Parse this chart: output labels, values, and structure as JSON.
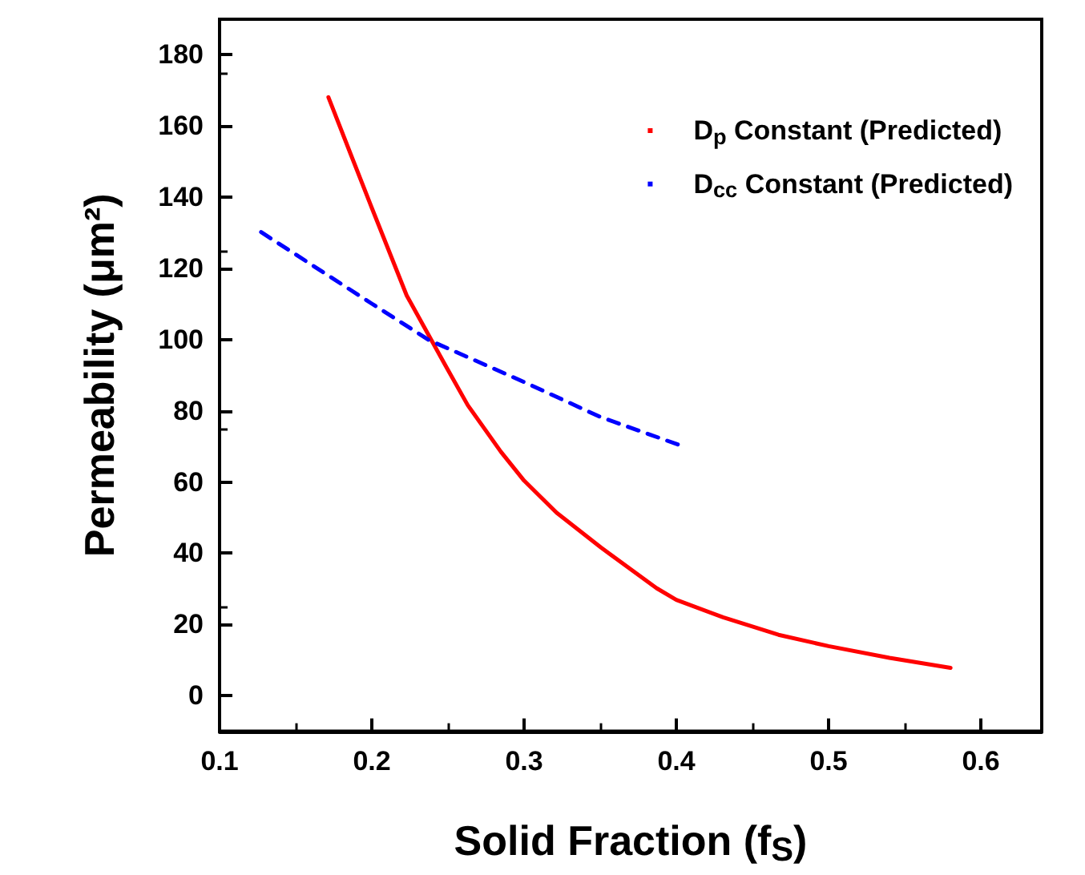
{
  "chart_data": {
    "type": "line",
    "xlabel": "Solid Fraction (f$_{S}$)",
    "ylabel": "Permeability (μm²)",
    "xlim": [
      0.1,
      0.64
    ],
    "xticks": [
      0.1,
      0.2,
      0.3,
      0.4,
      0.5,
      0.6
    ],
    "ylim": [
      -10,
      190
    ],
    "yticks": [
      0,
      20,
      40,
      60,
      80,
      100,
      120,
      140,
      160,
      180
    ],
    "grid": false,
    "legend": "top right",
    "marker": "none",
    "series": [
      {
        "name": "D$_{p}$ Constant (Predicted)",
        "color": "#ff0000",
        "line_style": "solid",
        "x": [
          0.1715,
          0.1864,
          0.2,
          0.2229,
          0.2374,
          0.2484,
          0.263,
          0.2848,
          0.3,
          0.3213,
          0.3505,
          0.387,
          0.4,
          0.4307,
          0.4671,
          0.5,
          0.54,
          0.5801
        ],
        "values": [
          168.1,
          151.8,
          137,
          112.4,
          101.2,
          92.7,
          81.6,
          68.5,
          60.4,
          51.4,
          41.6,
          30.2,
          26.9,
          22,
          17.1,
          13.9,
          10.6,
          7.8
        ]
      },
      {
        "name": "D$_{cc}$ Constant (Predicted)",
        "color": "#0000ff",
        "line_style": "dashed",
        "x": [
          0.1273,
          0.2,
          0.2374,
          0.3,
          0.35,
          0.4033
        ],
        "values": [
          130.2,
          110.1,
          99.9,
          88.1,
          78.3,
          70.2
        ]
      }
    ]
  }
}
